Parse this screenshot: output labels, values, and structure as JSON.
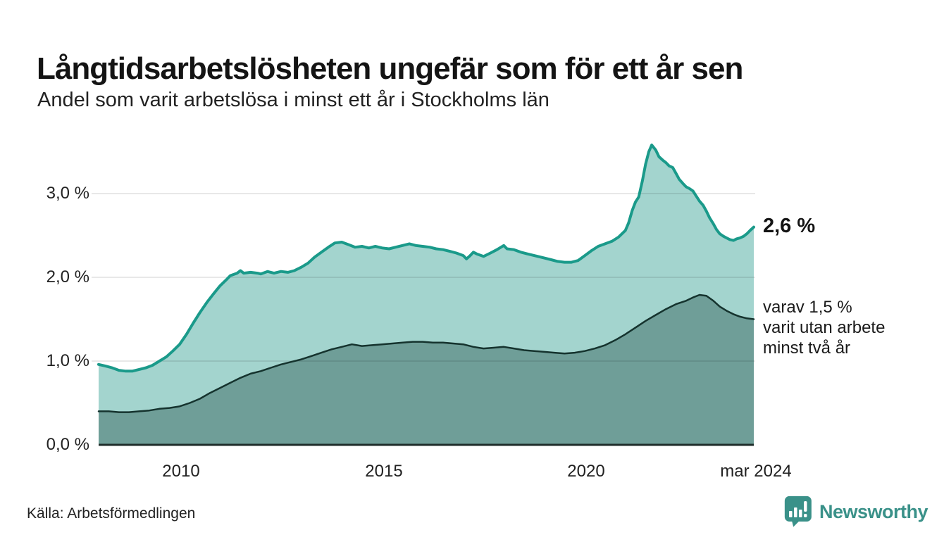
{
  "header": {
    "title": "Långtidsarbetslösheten ungefär som för ett år sen",
    "subtitle": "Andel som varit arbetslösa i minst ett år i Stockholms län"
  },
  "annotations": {
    "latest_value": "2,6 %",
    "secondary_line1": "varav 1,5 %",
    "secondary_line2": "varit utan arbete",
    "secondary_line3": "minst två år"
  },
  "footer": {
    "source": "Källa: Arbetsförmedlingen",
    "brand": "Newsworthy"
  },
  "colors": {
    "accent_line": "#1a9a8a",
    "accent_fill": "#a3d4ce",
    "dark_line": "#15332e",
    "dark_fill": "#6f9e98",
    "gridline": "rgba(0,0,0,0.12)",
    "baseline": "#1f2d2a",
    "brand_teal": "#3a9189",
    "text": "#1a1a1a"
  },
  "chart_data": {
    "type": "area",
    "title": "Långtidsarbetslösheten ungefär som för ett år sen",
    "subtitle": "Andel som varit arbetslösa i minst ett år i Stockholms län",
    "unit": "%",
    "x_range": [
      2008.0,
      2024.17
    ],
    "y_range": [
      0,
      3.75
    ],
    "grid": true,
    "legend_position": "none",
    "x_ticks": [
      {
        "t": 2010.0,
        "label": "2010"
      },
      {
        "t": 2015.0,
        "label": "2015"
      },
      {
        "t": 2020.0,
        "label": "2020"
      },
      {
        "t": 2024.17,
        "label": "mar 2024"
      }
    ],
    "y_ticks": [
      {
        "v": 3.0,
        "label": "3,0 %"
      },
      {
        "v": 2.0,
        "label": "2,0 %"
      },
      {
        "v": 1.0,
        "label": "1,0 %"
      },
      {
        "v": 0.0,
        "label": "0,0 %"
      }
    ],
    "series": [
      {
        "name": "Andel arbetslösa minst ett år",
        "latest_label": "2,6 %",
        "latest_value": 2.6,
        "line_color": "#1a9a8a",
        "fill_color": "#a3d4ce",
        "points": [
          [
            2008.0,
            0.96
          ],
          [
            2008.17,
            0.94
          ],
          [
            2008.33,
            0.92
          ],
          [
            2008.5,
            0.89
          ],
          [
            2008.67,
            0.88
          ],
          [
            2008.83,
            0.88
          ],
          [
            2009.0,
            0.9
          ],
          [
            2009.17,
            0.92
          ],
          [
            2009.33,
            0.95
          ],
          [
            2009.5,
            1.0
          ],
          [
            2009.67,
            1.05
          ],
          [
            2009.83,
            1.12
          ],
          [
            2010.0,
            1.2
          ],
          [
            2010.17,
            1.32
          ],
          [
            2010.33,
            1.45
          ],
          [
            2010.5,
            1.58
          ],
          [
            2010.67,
            1.7
          ],
          [
            2010.83,
            1.8
          ],
          [
            2011.0,
            1.9
          ],
          [
            2011.17,
            1.98
          ],
          [
            2011.25,
            2.02
          ],
          [
            2011.42,
            2.05
          ],
          [
            2011.5,
            2.08
          ],
          [
            2011.58,
            2.05
          ],
          [
            2011.75,
            2.06
          ],
          [
            2011.92,
            2.05
          ],
          [
            2012.0,
            2.04
          ],
          [
            2012.17,
            2.07
          ],
          [
            2012.33,
            2.05
          ],
          [
            2012.5,
            2.07
          ],
          [
            2012.67,
            2.06
          ],
          [
            2012.83,
            2.08
          ],
          [
            2013.0,
            2.12
          ],
          [
            2013.17,
            2.17
          ],
          [
            2013.33,
            2.24
          ],
          [
            2013.5,
            2.3
          ],
          [
            2013.67,
            2.36
          ],
          [
            2013.83,
            2.41
          ],
          [
            2014.0,
            2.42
          ],
          [
            2014.17,
            2.39
          ],
          [
            2014.33,
            2.36
          ],
          [
            2014.5,
            2.37
          ],
          [
            2014.67,
            2.35
          ],
          [
            2014.83,
            2.37
          ],
          [
            2015.0,
            2.35
          ],
          [
            2015.17,
            2.34
          ],
          [
            2015.33,
            2.36
          ],
          [
            2015.5,
            2.38
          ],
          [
            2015.67,
            2.4
          ],
          [
            2015.83,
            2.38
          ],
          [
            2016.0,
            2.37
          ],
          [
            2016.17,
            2.36
          ],
          [
            2016.33,
            2.34
          ],
          [
            2016.5,
            2.33
          ],
          [
            2016.67,
            2.31
          ],
          [
            2016.83,
            2.29
          ],
          [
            2017.0,
            2.26
          ],
          [
            2017.08,
            2.22
          ],
          [
            2017.17,
            2.26
          ],
          [
            2017.25,
            2.3
          ],
          [
            2017.33,
            2.28
          ],
          [
            2017.5,
            2.25
          ],
          [
            2017.67,
            2.29
          ],
          [
            2017.83,
            2.33
          ],
          [
            2018.0,
            2.38
          ],
          [
            2018.08,
            2.34
          ],
          [
            2018.25,
            2.33
          ],
          [
            2018.42,
            2.3
          ],
          [
            2018.58,
            2.28
          ],
          [
            2018.75,
            2.26
          ],
          [
            2018.92,
            2.24
          ],
          [
            2019.0,
            2.23
          ],
          [
            2019.17,
            2.21
          ],
          [
            2019.33,
            2.19
          ],
          [
            2019.5,
            2.18
          ],
          [
            2019.67,
            2.18
          ],
          [
            2019.83,
            2.2
          ],
          [
            2020.0,
            2.26
          ],
          [
            2020.17,
            2.32
          ],
          [
            2020.33,
            2.37
          ],
          [
            2020.5,
            2.4
          ],
          [
            2020.67,
            2.43
          ],
          [
            2020.83,
            2.48
          ],
          [
            2021.0,
            2.56
          ],
          [
            2021.08,
            2.65
          ],
          [
            2021.17,
            2.8
          ],
          [
            2021.25,
            2.9
          ],
          [
            2021.33,
            2.96
          ],
          [
            2021.42,
            3.15
          ],
          [
            2021.5,
            3.35
          ],
          [
            2021.58,
            3.5
          ],
          [
            2021.65,
            3.58
          ],
          [
            2021.75,
            3.52
          ],
          [
            2021.83,
            3.44
          ],
          [
            2021.92,
            3.4
          ],
          [
            2022.0,
            3.37
          ],
          [
            2022.08,
            3.33
          ],
          [
            2022.17,
            3.31
          ],
          [
            2022.25,
            3.24
          ],
          [
            2022.33,
            3.17
          ],
          [
            2022.42,
            3.12
          ],
          [
            2022.5,
            3.08
          ],
          [
            2022.58,
            3.06
          ],
          [
            2022.67,
            3.03
          ],
          [
            2022.75,
            2.97
          ],
          [
            2022.83,
            2.91
          ],
          [
            2022.92,
            2.86
          ],
          [
            2023.0,
            2.79
          ],
          [
            2023.08,
            2.71
          ],
          [
            2023.17,
            2.64
          ],
          [
            2023.25,
            2.57
          ],
          [
            2023.33,
            2.52
          ],
          [
            2023.42,
            2.49
          ],
          [
            2023.5,
            2.47
          ],
          [
            2023.58,
            2.45
          ],
          [
            2023.67,
            2.44
          ],
          [
            2023.75,
            2.46
          ],
          [
            2023.83,
            2.47
          ],
          [
            2023.92,
            2.49
          ],
          [
            2024.0,
            2.52
          ],
          [
            2024.08,
            2.56
          ],
          [
            2024.17,
            2.6
          ]
        ]
      },
      {
        "name": "varav utan arbete minst två år",
        "latest_label": "1,5 %",
        "latest_value": 1.5,
        "line_color": "#15332e",
        "fill_color": "#6f9e98",
        "points": [
          [
            2008.0,
            0.4
          ],
          [
            2008.25,
            0.4
          ],
          [
            2008.5,
            0.39
          ],
          [
            2008.75,
            0.39
          ],
          [
            2009.0,
            0.4
          ],
          [
            2009.25,
            0.41
          ],
          [
            2009.5,
            0.43
          ],
          [
            2009.75,
            0.44
          ],
          [
            2010.0,
            0.46
          ],
          [
            2010.25,
            0.5
          ],
          [
            2010.5,
            0.55
          ],
          [
            2010.75,
            0.62
          ],
          [
            2011.0,
            0.68
          ],
          [
            2011.25,
            0.74
          ],
          [
            2011.5,
            0.8
          ],
          [
            2011.75,
            0.85
          ],
          [
            2012.0,
            0.88
          ],
          [
            2012.25,
            0.92
          ],
          [
            2012.5,
            0.96
          ],
          [
            2012.75,
            0.99
          ],
          [
            2013.0,
            1.02
          ],
          [
            2013.25,
            1.06
          ],
          [
            2013.5,
            1.1
          ],
          [
            2013.75,
            1.14
          ],
          [
            2014.0,
            1.17
          ],
          [
            2014.25,
            1.2
          ],
          [
            2014.5,
            1.18
          ],
          [
            2014.75,
            1.19
          ],
          [
            2015.0,
            1.2
          ],
          [
            2015.25,
            1.21
          ],
          [
            2015.5,
            1.22
          ],
          [
            2015.75,
            1.23
          ],
          [
            2016.0,
            1.23
          ],
          [
            2016.25,
            1.22
          ],
          [
            2016.5,
            1.22
          ],
          [
            2016.75,
            1.21
          ],
          [
            2017.0,
            1.2
          ],
          [
            2017.25,
            1.17
          ],
          [
            2017.5,
            1.15
          ],
          [
            2017.75,
            1.16
          ],
          [
            2018.0,
            1.17
          ],
          [
            2018.25,
            1.15
          ],
          [
            2018.5,
            1.13
          ],
          [
            2018.75,
            1.12
          ],
          [
            2019.0,
            1.11
          ],
          [
            2019.25,
            1.1
          ],
          [
            2019.5,
            1.09
          ],
          [
            2019.75,
            1.1
          ],
          [
            2020.0,
            1.12
          ],
          [
            2020.25,
            1.15
          ],
          [
            2020.5,
            1.19
          ],
          [
            2020.75,
            1.25
          ],
          [
            2021.0,
            1.32
          ],
          [
            2021.25,
            1.4
          ],
          [
            2021.5,
            1.48
          ],
          [
            2021.75,
            1.55
          ],
          [
            2022.0,
            1.62
          ],
          [
            2022.25,
            1.68
          ],
          [
            2022.5,
            1.72
          ],
          [
            2022.67,
            1.76
          ],
          [
            2022.83,
            1.79
          ],
          [
            2023.0,
            1.78
          ],
          [
            2023.17,
            1.72
          ],
          [
            2023.33,
            1.65
          ],
          [
            2023.5,
            1.6
          ],
          [
            2023.67,
            1.56
          ],
          [
            2023.83,
            1.53
          ],
          [
            2024.0,
            1.51
          ],
          [
            2024.17,
            1.5
          ]
        ]
      }
    ]
  }
}
